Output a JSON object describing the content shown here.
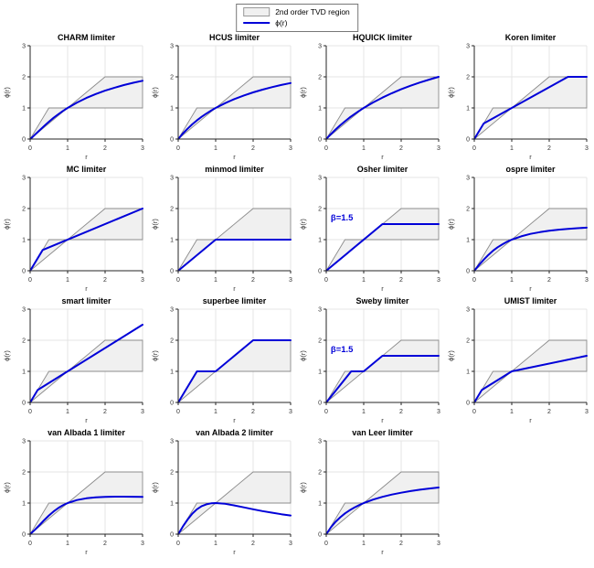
{
  "colors": {
    "curve": "#0000d8",
    "region_fill": "#f0f0f0",
    "region_edge": "#8c8c8c",
    "grid": "#e4e4e4",
    "axis": "#262626",
    "tick_text": "#333333",
    "title_text": "#000000",
    "annotation": "#0000d8"
  },
  "chart_data": {
    "type": "line",
    "xlabel": "r",
    "ylabel": "ϕ(r)",
    "xlim": [
      0,
      3
    ],
    "ylim": [
      0,
      3
    ],
    "xticks": [
      0,
      1,
      2,
      3
    ],
    "yticks": [
      0,
      1,
      2,
      3
    ],
    "grid": "on",
    "legend": [
      "2nd order TVD region",
      "ϕ(r)"
    ],
    "legend_position": "top-center",
    "tvd_region": [
      [
        0,
        0
      ],
      [
        0.5,
        1
      ],
      [
        1,
        1
      ],
      [
        2,
        2
      ],
      [
        3,
        2
      ],
      [
        3,
        1
      ],
      [
        1,
        1
      ]
    ],
    "subplots": [
      {
        "title": "CHARM limiter",
        "points": [
          [
            0,
            0
          ],
          [
            0.063,
            0.066
          ],
          [
            0.125,
            0.136
          ],
          [
            0.25,
            0.28
          ],
          [
            0.375,
            0.422
          ],
          [
            0.5,
            0.556
          ],
          [
            0.625,
            0.681
          ],
          [
            0.75,
            0.796
          ],
          [
            0.875,
            0.902
          ],
          [
            1,
            1
          ],
          [
            1.25,
            1.173
          ],
          [
            1.5,
            1.32
          ],
          [
            1.75,
            1.446
          ],
          [
            2,
            1.556
          ],
          [
            2.25,
            1.651
          ],
          [
            2.5,
            1.735
          ],
          [
            2.75,
            1.809
          ],
          [
            3,
            1.875
          ]
        ]
      },
      {
        "title": "HCUS limiter",
        "points": [
          [
            0,
            0
          ],
          [
            0.125,
            0.176
          ],
          [
            0.25,
            0.333
          ],
          [
            0.375,
            0.474
          ],
          [
            0.5,
            0.6
          ],
          [
            0.625,
            0.714
          ],
          [
            0.75,
            0.818
          ],
          [
            0.875,
            0.913
          ],
          [
            1,
            1
          ],
          [
            1.25,
            1.154
          ],
          [
            1.5,
            1.286
          ],
          [
            1.75,
            1.4
          ],
          [
            2,
            1.5
          ],
          [
            2.25,
            1.588
          ],
          [
            2.5,
            1.667
          ],
          [
            2.75,
            1.737
          ],
          [
            3,
            1.8
          ]
        ]
      },
      {
        "title": "HQUICK limiter",
        "points": [
          [
            0,
            0
          ],
          [
            0.125,
            0.16
          ],
          [
            0.25,
            0.308
          ],
          [
            0.375,
            0.444
          ],
          [
            0.5,
            0.571
          ],
          [
            0.625,
            0.69
          ],
          [
            0.75,
            0.8
          ],
          [
            0.875,
            0.903
          ],
          [
            1,
            1
          ],
          [
            1.25,
            1.176
          ],
          [
            1.5,
            1.333
          ],
          [
            1.75,
            1.474
          ],
          [
            2,
            1.6
          ],
          [
            2.25,
            1.714
          ],
          [
            2.5,
            1.818
          ],
          [
            2.75,
            1.913
          ],
          [
            3,
            2
          ]
        ]
      },
      {
        "title": "Koren limiter",
        "points": [
          [
            0,
            0
          ],
          [
            0.25,
            0.5
          ],
          [
            2.5,
            2
          ],
          [
            3,
            2
          ]
        ]
      },
      {
        "title": "MC limiter",
        "points": [
          [
            0,
            0
          ],
          [
            0.333,
            0.667
          ],
          [
            3,
            2
          ]
        ]
      },
      {
        "title": "minmod limiter",
        "points": [
          [
            0,
            0
          ],
          [
            1,
            1
          ],
          [
            3,
            1
          ]
        ]
      },
      {
        "title": "Osher limiter",
        "points": [
          [
            0,
            0
          ],
          [
            1.5,
            1.5
          ],
          [
            3,
            1.5
          ]
        ],
        "annotation": {
          "text": "β=1.5",
          "x": 0.12,
          "y": 1.62
        }
      },
      {
        "title": "ospre limiter",
        "points": [
          [
            0,
            0
          ],
          [
            0.125,
            0.185
          ],
          [
            0.25,
            0.357
          ],
          [
            0.375,
            0.51
          ],
          [
            0.5,
            0.643
          ],
          [
            0.625,
            0.756
          ],
          [
            0.75,
            0.851
          ],
          [
            0.875,
            0.932
          ],
          [
            1,
            1
          ],
          [
            1.25,
            1.107
          ],
          [
            1.5,
            1.184
          ],
          [
            1.75,
            1.242
          ],
          [
            2,
            1.286
          ],
          [
            2.25,
            1.32
          ],
          [
            2.5,
            1.346
          ],
          [
            2.75,
            1.367
          ],
          [
            3,
            1.385
          ]
        ]
      },
      {
        "title": "smart limiter",
        "points": [
          [
            0,
            0
          ],
          [
            0.2,
            0.4
          ],
          [
            3,
            2.5
          ]
        ]
      },
      {
        "title": "superbee limiter",
        "points": [
          [
            0,
            0
          ],
          [
            0.5,
            1
          ],
          [
            1,
            1
          ],
          [
            2,
            2
          ],
          [
            3,
            2
          ]
        ]
      },
      {
        "title": "Sweby limiter",
        "points": [
          [
            0,
            0
          ],
          [
            0.667,
            1
          ],
          [
            1,
            1
          ],
          [
            1.5,
            1.5
          ],
          [
            3,
            1.5
          ]
        ],
        "annotation": {
          "text": "β=1.5",
          "x": 0.12,
          "y": 1.62
        }
      },
      {
        "title": "UMIST limiter",
        "points": [
          [
            0,
            0
          ],
          [
            0.2,
            0.4
          ],
          [
            1,
            1
          ],
          [
            3,
            1.5
          ]
        ]
      },
      {
        "title": "van Albada 1 limiter",
        "points": [
          [
            0,
            0
          ],
          [
            0.125,
            0.138
          ],
          [
            0.25,
            0.294
          ],
          [
            0.375,
            0.452
          ],
          [
            0.5,
            0.6
          ],
          [
            0.625,
            0.73
          ],
          [
            0.75,
            0.84
          ],
          [
            0.875,
            0.929
          ],
          [
            1,
            1
          ],
          [
            1.25,
            1.098
          ],
          [
            1.5,
            1.154
          ],
          [
            1.75,
            1.185
          ],
          [
            2,
            1.2
          ],
          [
            2.25,
            1.206
          ],
          [
            2.5,
            1.207
          ],
          [
            2.75,
            1.204
          ],
          [
            3,
            1.2
          ]
        ]
      },
      {
        "title": "van Albada 2 limiter",
        "points": [
          [
            0,
            0
          ],
          [
            0.063,
            0.124
          ],
          [
            0.125,
            0.246
          ],
          [
            0.25,
            0.471
          ],
          [
            0.375,
            0.658
          ],
          [
            0.5,
            0.8
          ],
          [
            0.625,
            0.899
          ],
          [
            0.75,
            0.96
          ],
          [
            0.875,
            0.991
          ],
          [
            1,
            1
          ],
          [
            1.25,
            0.976
          ],
          [
            1.5,
            0.923
          ],
          [
            1.75,
            0.862
          ],
          [
            2,
            0.8
          ],
          [
            2.25,
            0.742
          ],
          [
            2.5,
            0.69
          ],
          [
            2.75,
            0.642
          ],
          [
            3,
            0.6
          ]
        ]
      },
      {
        "title": "van Leer limiter",
        "points": [
          [
            0,
            0
          ],
          [
            0.125,
            0.222
          ],
          [
            0.25,
            0.4
          ],
          [
            0.375,
            0.545
          ],
          [
            0.5,
            0.667
          ],
          [
            0.625,
            0.769
          ],
          [
            0.75,
            0.857
          ],
          [
            0.875,
            0.933
          ],
          [
            1,
            1
          ],
          [
            1.25,
            1.111
          ],
          [
            1.5,
            1.2
          ],
          [
            1.75,
            1.273
          ],
          [
            2,
            1.333
          ],
          [
            2.25,
            1.385
          ],
          [
            2.5,
            1.429
          ],
          [
            2.75,
            1.467
          ],
          [
            3,
            1.5
          ]
        ]
      }
    ]
  }
}
